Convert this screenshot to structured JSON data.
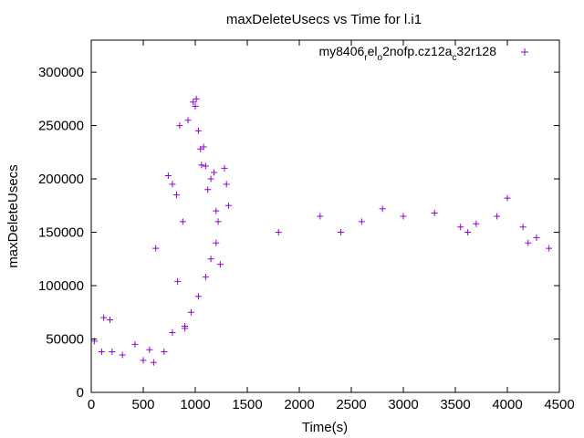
{
  "chart_data": {
    "type": "scatter",
    "title": "maxDeleteUsecs vs Time for l.i1",
    "xlabel": "Time(s)",
    "ylabel": "maxDeleteUsecs",
    "xlim": [
      0,
      4500
    ],
    "ylim": [
      0,
      330000
    ],
    "xticks": [
      0,
      500,
      1000,
      1500,
      2000,
      2500,
      3000,
      3500,
      4000,
      4500
    ],
    "yticks": [
      0,
      50000,
      100000,
      150000,
      200000,
      250000,
      300000
    ],
    "xtick_labels": [
      "0",
      "500",
      "1000",
      "1500",
      "2000",
      "2500",
      "3000",
      "3500",
      "4000",
      "4500"
    ],
    "ytick_labels": [
      "0",
      "50000",
      "100000",
      "150000",
      "200000",
      "250000",
      "300000"
    ],
    "grid": false,
    "legend_position": "top-right",
    "marker": "+",
    "color": "#9400d3",
    "series": [
      {
        "name": "my8406_rel_o2nofp.cz12a_c32r128",
        "points": [
          [
            30,
            48000
          ],
          [
            100,
            38000
          ],
          [
            120,
            70000
          ],
          [
            180,
            68000
          ],
          [
            200,
            38000
          ],
          [
            300,
            35000
          ],
          [
            420,
            45000
          ],
          [
            500,
            30000
          ],
          [
            560,
            40000
          ],
          [
            600,
            28000
          ],
          [
            620,
            135000
          ],
          [
            700,
            38000
          ],
          [
            740,
            203000
          ],
          [
            780,
            195000
          ],
          [
            820,
            185000
          ],
          [
            830,
            104000
          ],
          [
            850,
            250000
          ],
          [
            880,
            160000
          ],
          [
            900,
            60000
          ],
          [
            930,
            255000
          ],
          [
            980,
            272000
          ],
          [
            1000,
            268000
          ],
          [
            1010,
            275000
          ],
          [
            1030,
            245000
          ],
          [
            1050,
            228000
          ],
          [
            1060,
            213000
          ],
          [
            1080,
            230000
          ],
          [
            1100,
            212000
          ],
          [
            1120,
            190000
          ],
          [
            1150,
            200000
          ],
          [
            1180,
            206000
          ],
          [
            1200,
            170000
          ],
          [
            1220,
            160000
          ],
          [
            1280,
            210000
          ],
          [
            1300,
            195000
          ],
          [
            1320,
            175000
          ],
          [
            780,
            56000
          ],
          [
            900,
            62000
          ],
          [
            960,
            75000
          ],
          [
            1030,
            90000
          ],
          [
            1100,
            108000
          ],
          [
            1150,
            125000
          ],
          [
            1200,
            140000
          ],
          [
            1240,
            120000
          ],
          [
            2600,
            160000
          ],
          [
            3000,
            165000
          ],
          [
            3550,
            155000
          ],
          [
            3620,
            150000
          ],
          [
            3900,
            165000
          ],
          [
            4000,
            182000
          ],
          [
            4200,
            140000
          ],
          [
            4280,
            145000
          ],
          [
            4400,
            135000
          ],
          [
            2200,
            165000
          ],
          [
            2800,
            172000
          ],
          [
            3300,
            168000
          ],
          [
            4150,
            155000
          ],
          [
            2400,
            150000
          ],
          [
            1800,
            150000
          ],
          [
            3700,
            158000
          ]
        ]
      }
    ]
  }
}
